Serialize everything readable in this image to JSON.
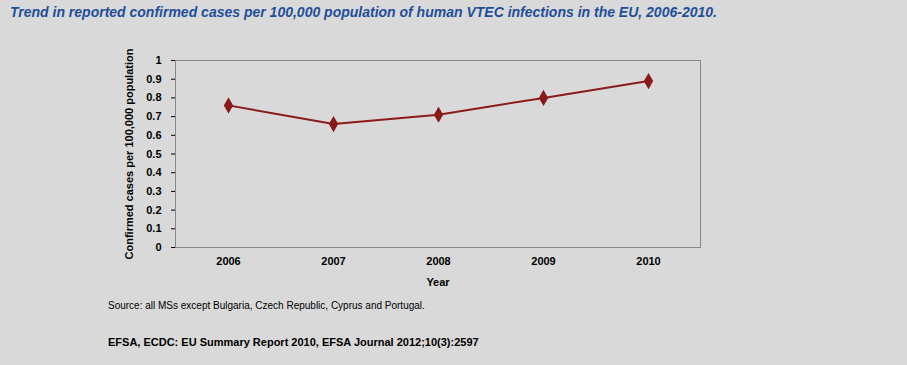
{
  "chart_data": {
    "type": "line",
    "title": "Trend in reported confirmed cases per 100,000 population of human VTEC infections in the EU, 2006-2010.",
    "categories": [
      "2006",
      "2007",
      "2008",
      "2009",
      "2010"
    ],
    "values": [
      0.76,
      0.66,
      0.71,
      0.8,
      0.89
    ],
    "color": "#8b1a1a",
    "marker": "diamond",
    "ylim": [
      0,
      1
    ],
    "yticks": [
      0,
      0.1,
      0.2,
      0.3,
      0.4,
      0.5,
      0.6,
      0.7,
      0.8,
      0.9,
      1
    ],
    "x_label": "Year",
    "y_label": "Confirmed cases per 100,000 population",
    "grid": false,
    "source": "Source: all MSs except Bulgaria, Czech Republic, Cyprus and Portugal.",
    "citation": "EFSA, ECDC: EU Summary Report 2010, EFSA Journal 2012;10(3):2597"
  }
}
